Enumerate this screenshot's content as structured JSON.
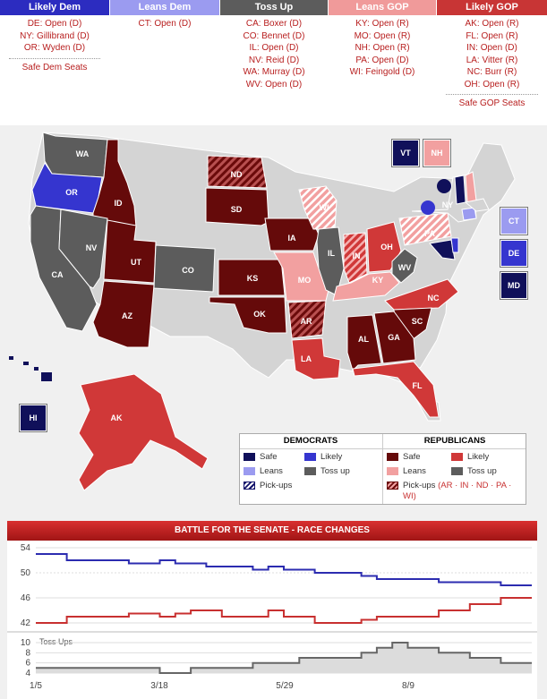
{
  "categories": [
    {
      "title": "Likely Dem",
      "color": "#2c2cc0",
      "items": [
        "DE: Open (D)",
        "NY: Gillibrand (D)",
        "OR: Wyden (D)"
      ],
      "footer": "Safe Dem Seats"
    },
    {
      "title": "Leans Dem",
      "color": "#9b9bf0",
      "items": [
        "CT: Open (D)"
      ],
      "footer": ""
    },
    {
      "title": "Toss Up",
      "color": "#5c5c5c",
      "items": [
        "CA: Boxer (D)",
        "CO: Bennet (D)",
        "IL: Open (D)",
        "NV: Reid (D)",
        "WA: Murray (D)",
        "WV: Open (D)"
      ],
      "footer": ""
    },
    {
      "title": "Leans GOP",
      "color": "#f09a9a",
      "items": [
        "KY: Open (R)",
        "MO: Open (R)",
        "NH: Open (R)",
        "PA: Open (D)",
        "WI: Feingold (D)"
      ],
      "footer": ""
    },
    {
      "title": "Likely GOP",
      "color": "#c83535",
      "items": [
        "AK: Open (R)",
        "FL: Open (R)",
        "IN: Open (D)",
        "LA: Vitter (R)",
        "NC: Burr (R)",
        "OH: Open (R)"
      ],
      "footer": "Safe GOP Seats"
    }
  ],
  "colors": {
    "safe_dem": "#10105a",
    "likely_dem": "#3535cf",
    "leans_dem": "#9b9bf0",
    "tossup": "#5c5c5c",
    "leans_gop": "#f2a0a0",
    "likely_gop": "#d03838",
    "safe_gop": "#650a0a",
    "no_race": "#d4d4d4"
  },
  "map": {
    "state_labels": [
      "WA",
      "OR",
      "ID",
      "CA",
      "NV",
      "UT",
      "AZ",
      "CO",
      "ND",
      "SD",
      "KS",
      "OK",
      "AR",
      "LA",
      "IA",
      "MO",
      "IL",
      "WI",
      "IN",
      "KY",
      "OH",
      "WV",
      "PA",
      "NY",
      "NC",
      "SC",
      "GA",
      "AL",
      "FL",
      "AK",
      "HI"
    ],
    "side_boxes": [
      "VT",
      "NH",
      "CT",
      "DE",
      "MD",
      "HI"
    ]
  },
  "legend": {
    "dem_header": "DEMOCRATS",
    "gop_header": "REPUBLICANS",
    "safe": "Safe",
    "likely": "Likely",
    "leans": "Leans",
    "tossup": "Toss up",
    "pickups": "Pick-ups",
    "gop_pickups": "(AR · IN · ND · PA · WI)"
  },
  "race": {
    "title": "BATTLE FOR THE SENATE - RACE CHANGES",
    "tossups_label": "Toss Ups"
  },
  "chart_data": {
    "type": "line",
    "x_labels": [
      "1/5",
      "3/18",
      "5/29",
      "8/9"
    ],
    "upper": {
      "yticks": [
        54,
        50,
        46,
        42
      ],
      "ylim": [
        42,
        54
      ],
      "series": [
        {
          "color": "#2c2cb0",
          "values": [
            53,
            53,
            52,
            52,
            52,
            52,
            51.5,
            51.5,
            52,
            51.5,
            51.5,
            51,
            51,
            51,
            50.5,
            51,
            50.5,
            50.5,
            50,
            50,
            50,
            49.5,
            49,
            49,
            49,
            49,
            48.5,
            48.5,
            48.5,
            48.5,
            48,
            48,
            48
          ]
        },
        {
          "color": "#c83030",
          "values": [
            42,
            42,
            43,
            43,
            43,
            43,
            43.5,
            43.5,
            43,
            43.5,
            44,
            44,
            43,
            43,
            43,
            44,
            43,
            43,
            42,
            42,
            42,
            42.5,
            43,
            43,
            43,
            43,
            44,
            44,
            45,
            45,
            46,
            46,
            46
          ]
        }
      ]
    },
    "lower": {
      "yticks": [
        10,
        8,
        6,
        4
      ],
      "ylim": [
        4,
        10
      ],
      "series": [
        {
          "name": "Toss Ups",
          "color": "#666666",
          "values": [
            5,
            5,
            5,
            5,
            5,
            5,
            5,
            5,
            4,
            4,
            5,
            5,
            5,
            5,
            6,
            6,
            6,
            7,
            7,
            7,
            7,
            8,
            9,
            10,
            9,
            9,
            8,
            8,
            7,
            7,
            6,
            6,
            6
          ]
        }
      ]
    }
  }
}
